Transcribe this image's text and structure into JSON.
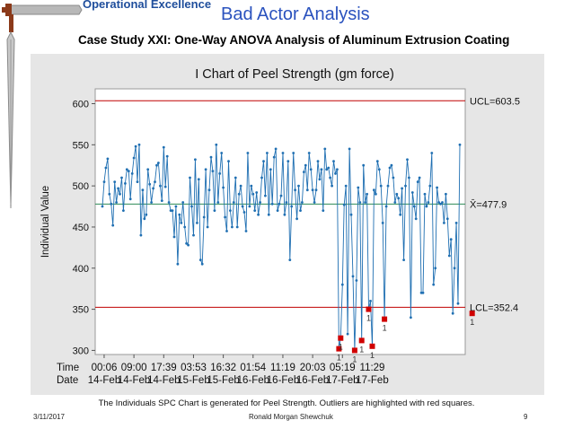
{
  "slide": {
    "brand": "Operational Excellence",
    "title": "Bad Actor Analysis",
    "subtitle": "Case Study XXI:  One-Way ANOVA Analysis of Aluminum Extrusion Coating",
    "caption": "The Individuals SPC Chart is generated for Peel Strength.  Outliers are highlighted with red squares.",
    "footer_date": "3/11/2017",
    "footer_author": "Ronald Morgan Shewchuk",
    "page_number": "9"
  },
  "colors": {
    "series": "#1f6fb2",
    "limit_line": "#c00000",
    "center_line": "#2e8b57",
    "outlier": "#d00000",
    "panel": "#e6e6e6"
  },
  "chart_data": {
    "type": "line",
    "title": "I Chart of Peel Strength (gm force)",
    "xlabel": "",
    "ylabel": "Individual Value",
    "ylim": [
      295,
      618
    ],
    "yticks": [
      300,
      350,
      400,
      450,
      500,
      550,
      600
    ],
    "grid": false,
    "x_tick_rows": [
      {
        "label": "Time",
        "values": [
          "00:06",
          "09:00",
          "17:39",
          "03:53",
          "16:32",
          "01:54",
          "11:19",
          "20:03",
          "05:19",
          "11:29"
        ]
      },
      {
        "label": "Date",
        "values": [
          "14-Feb",
          "14-Feb",
          "14-Feb",
          "15-Feb",
          "15-Feb",
          "16-Feb",
          "16-Feb",
          "16-Feb",
          "17-Feb",
          "17-Feb"
        ]
      }
    ],
    "x_tick_positions": [
      1,
      18,
      35,
      52,
      69,
      86,
      103,
      120,
      137,
      154
    ],
    "control_limits": [
      {
        "name": "UCL",
        "label": "UCL=603.5",
        "value": 603.5
      },
      {
        "name": "Mean",
        "label": "X̄=477.9",
        "value": 477.9
      },
      {
        "name": "LCL",
        "label": "LCL=352.4",
        "value": 352.4
      }
    ],
    "outlier_flag": "1",
    "series": [
      {
        "name": "",
        "values": [
          475,
          505,
          522,
          533,
          490,
          478,
          452,
          505,
          480,
          497,
          490,
          510,
          470,
          503,
          520,
          518,
          484,
          515,
          534,
          548,
          505,
          550,
          440,
          495,
          460,
          465,
          520,
          502,
          480,
          497,
          505,
          525,
          528,
          500,
          482,
          547,
          499,
          536,
          480,
          470,
          470,
          438,
          475,
          405,
          465,
          455,
          480,
          450,
          430,
          428,
          510,
          475,
          440,
          532,
          455,
          508,
          410,
          405,
          462,
          520,
          450,
          495,
          535,
          518,
          470,
          550,
          480,
          515,
          540,
          498,
          462,
          445,
          530,
          470,
          450,
          480,
          510,
          450,
          490,
          500,
          475,
          468,
          445,
          540,
          475,
          500,
          490,
          470,
          492,
          465,
          480,
          510,
          530,
          488,
          540,
          465,
          520,
          478,
          535,
          545,
          470,
          478,
          488,
          540,
          465,
          480,
          530,
          410,
          475,
          540,
          495,
          460,
          500,
          470,
          480,
          517,
          525,
          495,
          540,
          520,
          495,
          480,
          495,
          530,
          508,
          520,
          470,
          545,
          520,
          522,
          510,
          500,
          530,
          515,
          520,
          302,
          315,
          380,
          477,
          500,
          320,
          545,
          465,
          390,
          300,
          385,
          498,
          480,
          312,
          525,
          480,
          490,
          350,
          360,
          305,
          495,
          490,
          530,
          520,
          500,
          455,
          338,
          475,
          500,
          522,
          525,
          510,
          480,
          490,
          485,
          465,
          497,
          410,
          500,
          532,
          510,
          340,
          492,
          475,
          460,
          505,
          510,
          370,
          370,
          490,
          475,
          480,
          500,
          540,
          380,
          400,
          498,
          480,
          478,
          480,
          455,
          490,
          460,
          415,
          435,
          345,
          400,
          455,
          357,
          550
        ]
      }
    ],
    "outliers": [
      {
        "index": 135,
        "value": 302
      },
      {
        "index": 136,
        "value": 315
      },
      {
        "index": 144,
        "value": 300
      },
      {
        "index": 148,
        "value": 312
      },
      {
        "index": 152,
        "value": 350
      },
      {
        "index": 154,
        "value": 305
      },
      {
        "index": 161,
        "value": 338
      },
      {
        "index": 211,
        "value": 345
      }
    ]
  }
}
